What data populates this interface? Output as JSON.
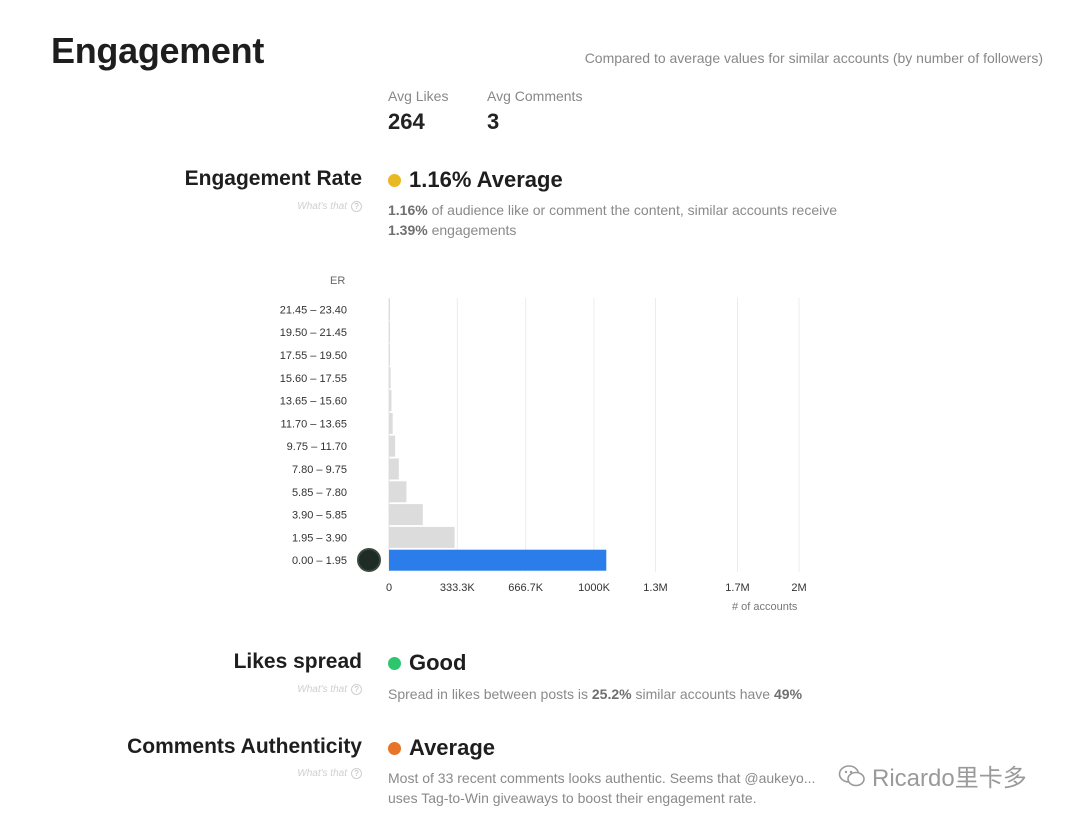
{
  "page": {
    "title": "Engagement",
    "compare_note": "Compared to average values for similar accounts (by number of followers)"
  },
  "stats": {
    "likes_label": "Avg Likes",
    "likes_value": "264",
    "comments_label": "Avg Comments",
    "comments_value": "3"
  },
  "whats_that": "What's that",
  "engagement_rate": {
    "label": "Engagement Rate",
    "verdict": "1.16% Average",
    "status_color": "#e8b923",
    "desc_value": "1.16%",
    "desc_mid": " of audience like or comment the content, similar accounts receive",
    "desc_compare": "1.39%",
    "desc_tail": " engagements"
  },
  "chart_data": {
    "type": "bar",
    "orientation": "horizontal",
    "ylabel": "ER",
    "xlabel": "# of accounts",
    "categories": [
      "21.45 – 23.40",
      "19.50 – 21.45",
      "17.55 – 19.50",
      "15.60 – 17.55",
      "13.65 – 15.60",
      "11.70 – 13.65",
      "9.75 – 11.70",
      "7.80 – 9.75",
      "5.85 – 7.80",
      "3.90 – 5.85",
      "1.95 – 3.90",
      "0.00 – 1.95"
    ],
    "values": [
      2000,
      3000,
      4000,
      8000,
      12000,
      18000,
      30000,
      48000,
      85000,
      165000,
      320000,
      1060000
    ],
    "highlight_index": 11,
    "bar_color": "#dcdcdc",
    "highlight_color": "#2b7de9",
    "x_ticks": [
      0,
      333300,
      666700,
      1000000,
      1300000,
      1700000,
      2000000
    ],
    "x_tick_labels": [
      "0",
      "333.3K",
      "666.7K",
      "1000K",
      "1.3M",
      "1.7M",
      "2M"
    ],
    "xlim": [
      0,
      2000000
    ]
  },
  "likes_spread": {
    "label": "Likes spread",
    "verdict": "Good",
    "status_color": "#2ec56e",
    "desc_pre": "Spread in likes between posts is ",
    "desc_value": "25.2%",
    "desc_mid": " similar accounts have ",
    "desc_compare": "49%"
  },
  "comments_authenticity": {
    "label": "Comments Authenticity",
    "verdict": "Average",
    "status_color": "#e8742a",
    "desc_line1": "Most of 33 recent comments looks authentic. Seems that @aukeyo...",
    "desc_line2": "uses Tag-to-Win giveaways to boost their engagement rate."
  },
  "watermark": {
    "text": "Ricardo里卡多",
    "icon": "wechat-icon"
  }
}
